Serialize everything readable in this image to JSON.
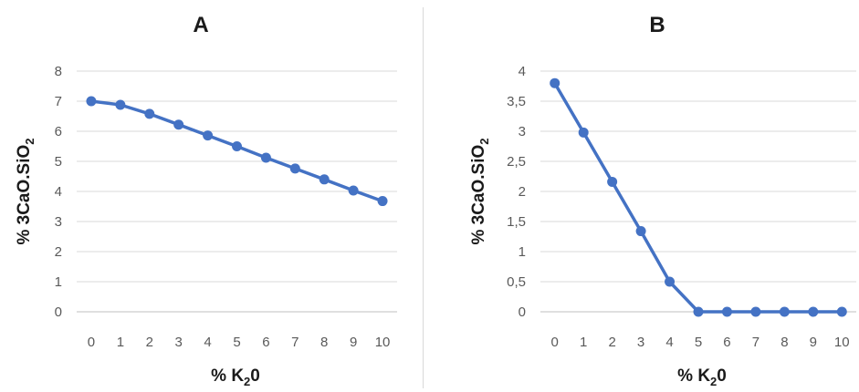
{
  "chart_data": [
    {
      "type": "line",
      "title": "A",
      "xlabel": "% K20",
      "xlabel_parts": {
        "prefix": "% K",
        "sub": "2",
        "suffix": "0"
      },
      "ylabel": "% 3CaO.SiO2",
      "ylabel_parts": {
        "prefix": "% 3CaO.SiO",
        "sub": "2"
      },
      "x": [
        0,
        1,
        2,
        3,
        4,
        5,
        6,
        7,
        8,
        9,
        10
      ],
      "x_tick_labels": [
        "0",
        "1",
        "2",
        "3",
        "4",
        "5",
        "6",
        "7",
        "8",
        "9",
        "10"
      ],
      "series": [
        {
          "values": [
            7.0,
            6.88,
            6.58,
            6.22,
            5.86,
            5.5,
            5.12,
            4.76,
            4.4,
            4.03,
            3.68
          ]
        }
      ],
      "ylim": [
        0,
        8
      ],
      "y_ticks": [
        0,
        1,
        2,
        3,
        4,
        5,
        6,
        7,
        8
      ],
      "y_tick_labels": [
        "0",
        "1",
        "2",
        "3",
        "4",
        "5",
        "6",
        "7",
        "8"
      ],
      "grid": true,
      "color": "#4472c4"
    },
    {
      "type": "line",
      "title": "B",
      "xlabel": "% K20",
      "xlabel_parts": {
        "prefix": "% K",
        "sub": "2",
        "suffix": "0"
      },
      "ylabel": "% 3CaO.SiO2",
      "ylabel_parts": {
        "prefix": "% 3CaO.SiO",
        "sub": "2"
      },
      "x": [
        0,
        1,
        2,
        3,
        4,
        5,
        6,
        7,
        8,
        9,
        10
      ],
      "x_tick_labels": [
        "0",
        "1",
        "2",
        "3",
        "4",
        "5",
        "6",
        "7",
        "8",
        "9",
        "10"
      ],
      "series": [
        {
          "values": [
            3.8,
            2.98,
            2.16,
            1.34,
            0.5,
            0,
            0,
            0,
            0,
            0,
            0
          ]
        }
      ],
      "ylim": [
        0,
        4
      ],
      "y_ticks": [
        0,
        0.5,
        1,
        1.5,
        2,
        2.5,
        3,
        3.5,
        4
      ],
      "y_tick_labels": [
        "0",
        "0,5",
        "1",
        "1,5",
        "2",
        "2,5",
        "3",
        "3,5",
        "4"
      ],
      "grid": true,
      "color": "#4472c4"
    }
  ]
}
